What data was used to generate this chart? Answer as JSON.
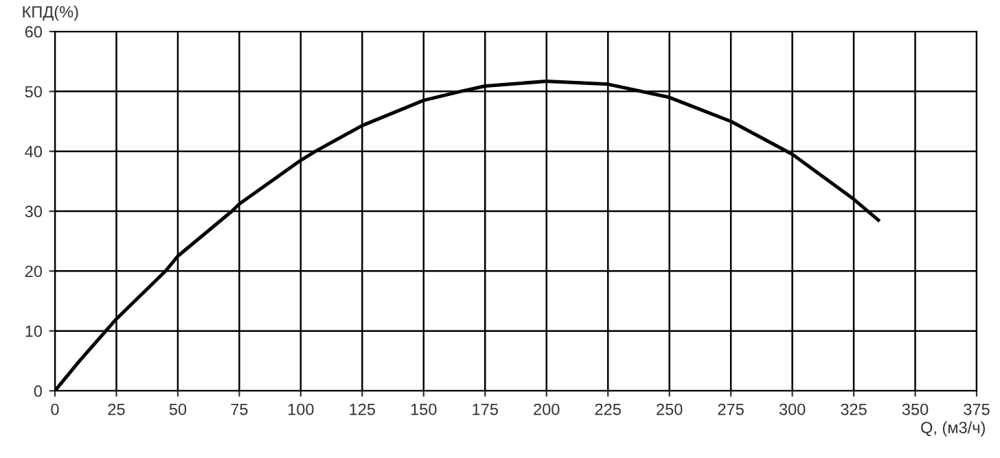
{
  "chart_data": {
    "type": "line",
    "xlabel": "Q, (м3/ч)",
    "ylabel": "КПД(%)",
    "series": [
      {
        "color": "#000000",
        "x": [
          0,
          10,
          25,
          45,
          50,
          72,
          75,
          100,
          106,
          125,
          150,
          165,
          175,
          200,
          225,
          250,
          275,
          300,
          325,
          335
        ],
        "values": [
          0,
          5,
          12,
          20,
          22.5,
          30,
          31.2,
          38.5,
          40,
          44.3,
          48.5,
          50,
          50.9,
          51.7,
          51.2,
          49,
          45,
          39.5,
          32,
          28.5
        ]
      }
    ],
    "xlim": [
      0,
      375
    ],
    "xticks": [
      0,
      25,
      50,
      75,
      100,
      125,
      150,
      175,
      200,
      225,
      250,
      275,
      300,
      325,
      350,
      375
    ],
    "ylim": [
      0,
      60
    ],
    "yticks": [
      0,
      10,
      20,
      30,
      40,
      50,
      60
    ],
    "grid": true,
    "marker": "none",
    "line_style": "solid",
    "legend": false
  }
}
